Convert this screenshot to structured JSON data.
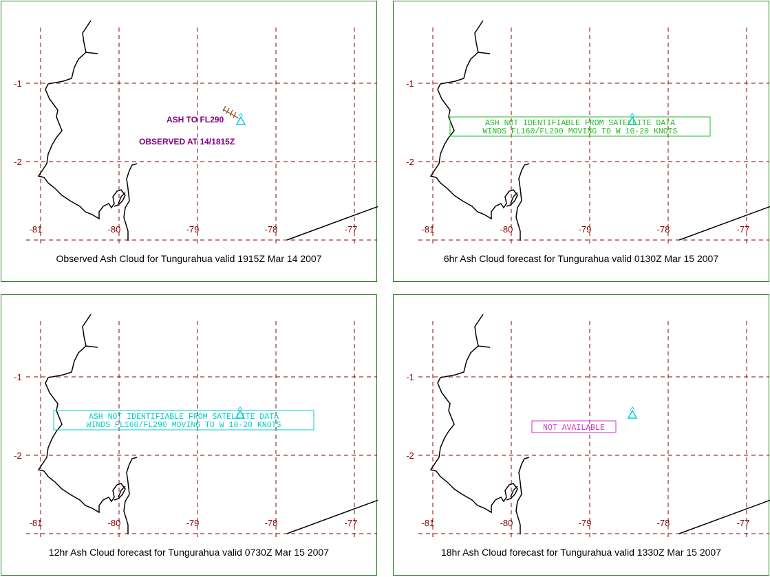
{
  "colors": {
    "border": "#1f7a1f",
    "grid": "#8b0000",
    "tick_label": "#8b0000",
    "coast": "#000000",
    "volcano": "#00d0e0",
    "observed_text": "#800080",
    "ash_line": "#8b4513",
    "advisory_green": "#22bb22",
    "advisory_cyan": "#00cccc",
    "not_available": "#cc33cc"
  },
  "axes": {
    "lon_ticks": [
      "-81",
      "-80",
      "-79",
      "-78",
      "-77"
    ],
    "lat_ticks": [
      "-1",
      "-2"
    ]
  },
  "panels": [
    {
      "caption": "Observed Ash Cloud for Tungurahua valid 1915Z Mar 14 2007",
      "annotation_1": "ASH TO FL290",
      "annotation_2": "OBSERVED AT 14/1815Z"
    },
    {
      "caption": "6hr Ash Cloud forecast for Tungurahua valid 0130Z Mar 15 2007",
      "line_1": "ASH NOT IDENTIFIABLE FROM SATELLITE DATA",
      "line_2": "WINDS FL160/FL290 MOVING TO W 10-20 KNOTS"
    },
    {
      "caption": "12hr Ash Cloud forecast for Tungurahua valid 0730Z Mar 15 2007",
      "line_1": "ASH NOT IDENTIFIABLE FROM SATELLITE DATA",
      "line_2": "WINDS FL160/FL290 MOVING TO W 10-20 KNOTS"
    },
    {
      "caption": "18hr Ash Cloud forecast for Tungurahua valid 1330Z Mar 15 2007",
      "line_1": "NOT AVAILABLE"
    }
  ]
}
